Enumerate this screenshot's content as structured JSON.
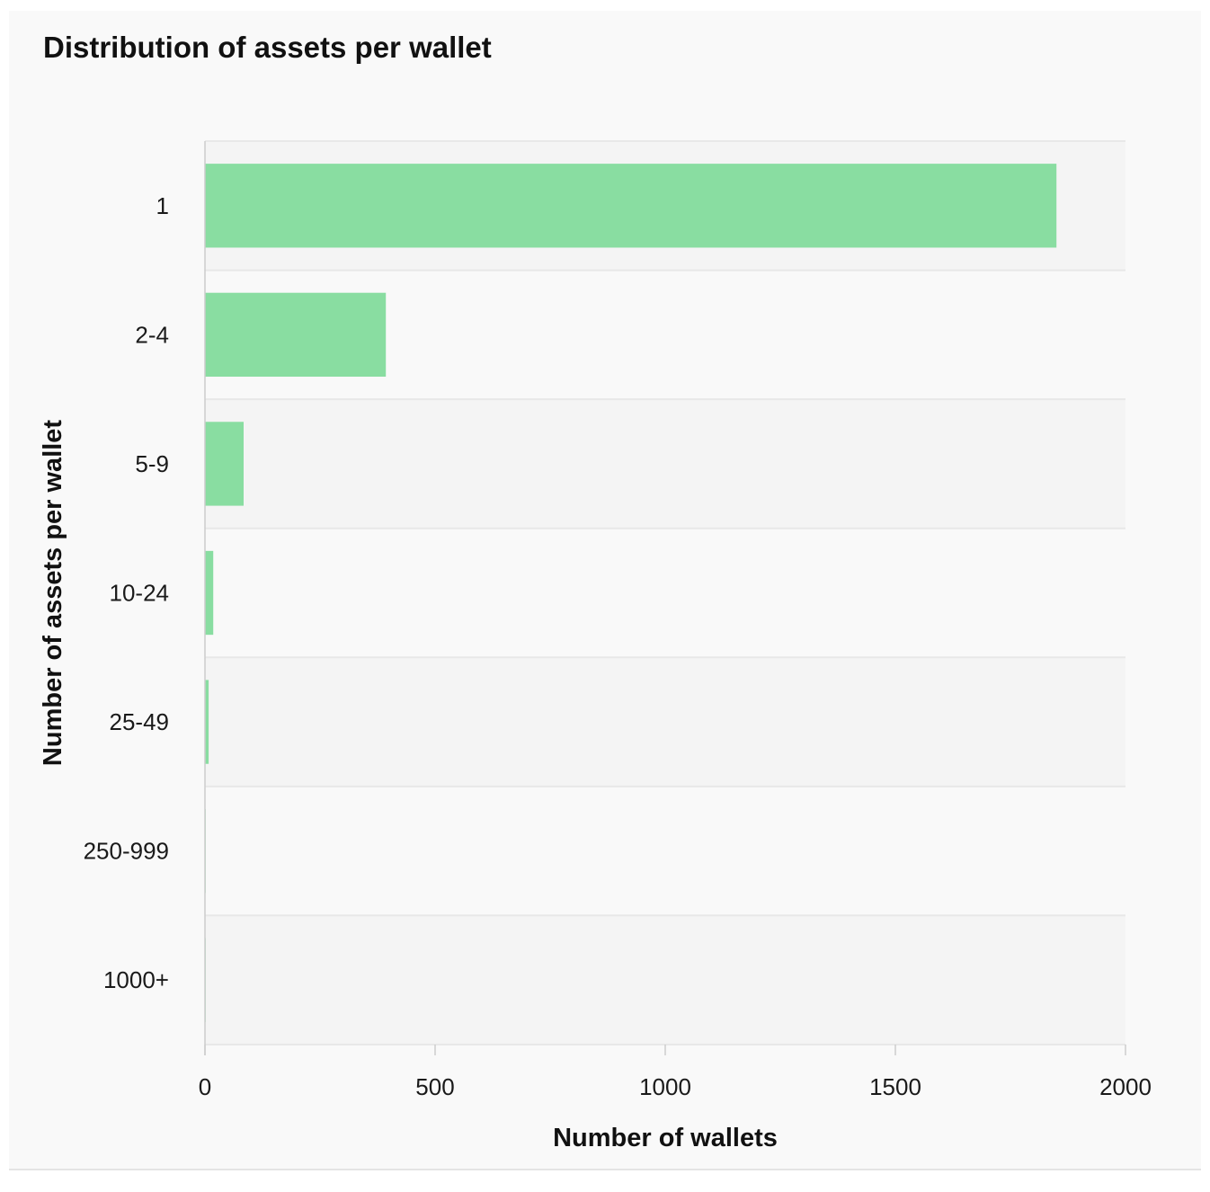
{
  "chart_data": {
    "type": "bar",
    "orientation": "horizontal",
    "title": "Distribution of assets per wallet",
    "xlabel": "Number of wallets",
    "ylabel": "Number of assets per wallet",
    "categories": [
      "1",
      "2-4",
      "5-9",
      "10-24",
      "25-49",
      "250-999",
      "1000+"
    ],
    "values": [
      1850,
      393,
      84,
      18,
      8,
      1,
      1
    ],
    "xlim": [
      0,
      2000
    ],
    "xticks": [
      0,
      500,
      1000,
      1500,
      2000
    ],
    "grid": false,
    "legend": "none",
    "colors": {
      "bar": "#89dda1",
      "band_light": "#f9f9f9",
      "band_dark": "#f4f4f4",
      "separator": "#e8e8e8",
      "axis": "#cccccc"
    }
  }
}
